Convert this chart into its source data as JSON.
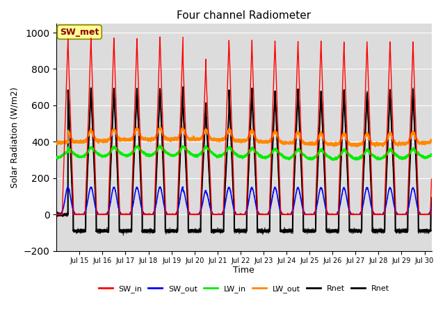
{
  "title": "Four channel Radiometer",
  "xlabel": "Time",
  "ylabel": "Solar Radiation (W/m2)",
  "xlim_days": [
    14.0,
    30.3
  ],
  "ylim": [
    -200,
    1050
  ],
  "yticks": [
    -200,
    0,
    200,
    400,
    600,
    800,
    1000
  ],
  "bg_color": "#dcdcdc",
  "grid_color": "#ffffff",
  "annotation_text": "SW_met",
  "annotation_color": "#8B0000",
  "annotation_bg": "#ffff99",
  "series": {
    "SW_in": {
      "color": "#ff0000",
      "lw": 1.0
    },
    "SW_out": {
      "color": "#0000ff",
      "lw": 1.2
    },
    "LW_in": {
      "color": "#00ee00",
      "lw": 1.5
    },
    "LW_out": {
      "color": "#ff8800",
      "lw": 1.5
    },
    "Rnet1": {
      "color": "#000000",
      "lw": 1.5
    },
    "Rnet2": {
      "color": "#000000",
      "lw": 1.0
    }
  },
  "legend_labels": [
    "SW_in",
    "SW_out",
    "LW_in",
    "LW_out",
    "Rnet",
    "Rnet"
  ],
  "legend_colors": [
    "#ff0000",
    "#0000ff",
    "#00ee00",
    "#ff8800",
    "#000000",
    "#000000"
  ]
}
